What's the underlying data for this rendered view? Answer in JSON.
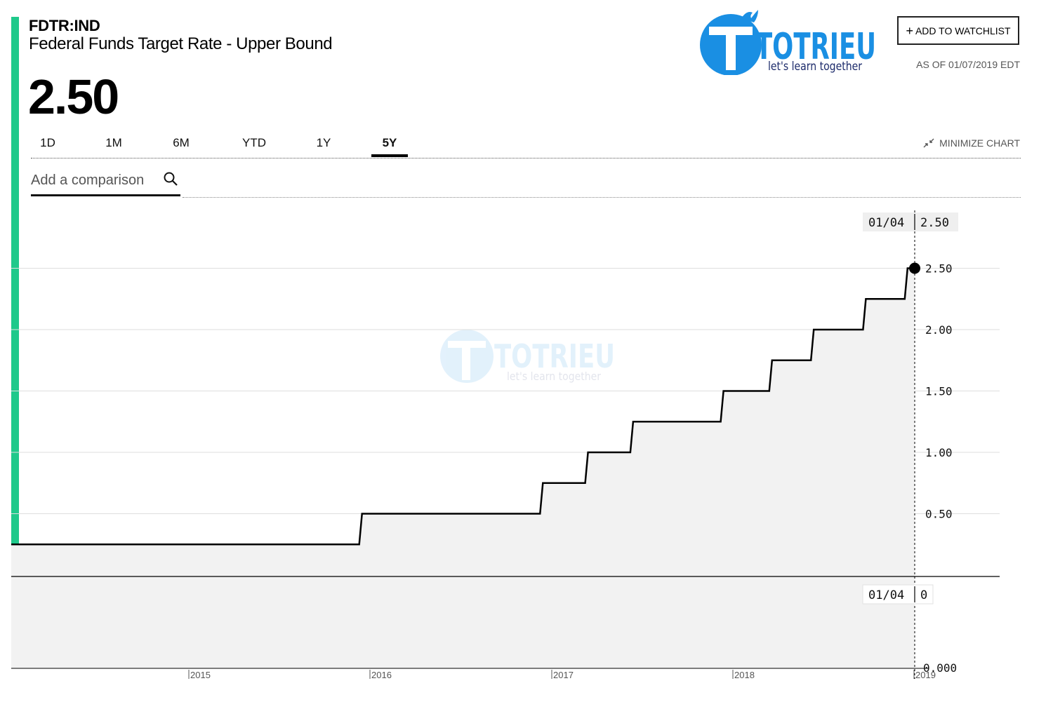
{
  "header": {
    "ticker": "FDTR:IND",
    "name": "Federal Funds Target Rate - Upper Bound",
    "price": "2.50",
    "watchlist_label": "ADD TO WATCHLIST",
    "as_of": "AS OF 01/07/2019 EDT"
  },
  "logo": {
    "text": "TOTRIEU",
    "tagline": "let's learn together",
    "color": "#1a8fe3"
  },
  "tabs": [
    {
      "label": "1D",
      "active": false
    },
    {
      "label": "1M",
      "active": false
    },
    {
      "label": "6M",
      "active": false
    },
    {
      "label": "YTD",
      "active": false
    },
    {
      "label": "1Y",
      "active": false
    },
    {
      "label": "5Y",
      "active": true
    }
  ],
  "minimize_label": "MINIMIZE CHART",
  "comparison": {
    "placeholder": "Add a comparison"
  },
  "tooltip": {
    "date": "01/04",
    "value": "2.50",
    "lower_date": "01/04",
    "lower_value": "0"
  },
  "chart_data": {
    "type": "line",
    "style": "step",
    "x_labels": [
      "2015",
      "2016",
      "2017",
      "2018",
      "2019"
    ],
    "y_ticks": [
      "0.50",
      "1.00",
      "1.50",
      "2.00",
      "2.50"
    ],
    "ylim": [
      0.0,
      2.75
    ],
    "grid": true,
    "line_color": "#000000",
    "fill_color": "#f2f2f2",
    "series": [
      {
        "steps": [
          {
            "x": "2014-01-01",
            "y": 0.25
          },
          {
            "x": "2015-12-16",
            "y": 0.5
          },
          {
            "x": "2016-12-14",
            "y": 0.75
          },
          {
            "x": "2017-03-15",
            "y": 1.0
          },
          {
            "x": "2017-06-14",
            "y": 1.25
          },
          {
            "x": "2017-12-13",
            "y": 1.5
          },
          {
            "x": "2018-03-21",
            "y": 1.75
          },
          {
            "x": "2018-06-13",
            "y": 2.0
          },
          {
            "x": "2018-09-26",
            "y": 2.25
          },
          {
            "x": "2018-12-19",
            "y": 2.5
          },
          {
            "x": "2019-01-04",
            "y": 2.5
          }
        ]
      }
    ],
    "lower_panel": {
      "y_tick": "0.000",
      "value": 0
    }
  }
}
